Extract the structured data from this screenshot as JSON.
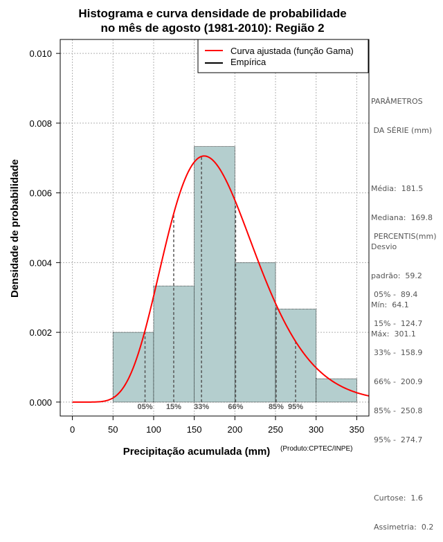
{
  "chart_data": {
    "type": "bar",
    "title_line1": "Histograma e curva densidade de probabilidade",
    "title_line2": "no mês de agosto (1981-2010): Região 2",
    "xlabel": "Precipitação acumulada (mm)",
    "ylabel": "Densidade de probabilidade",
    "credit": "(Produto:CPTEC/INPE)",
    "xlim": [
      -15,
      365
    ],
    "ylim": [
      -0.0004,
      0.0104
    ],
    "x_ticks": [
      0,
      50,
      100,
      150,
      200,
      250,
      300,
      350
    ],
    "y_ticks": [
      0.0,
      0.002,
      0.004,
      0.006,
      0.008,
      0.01
    ],
    "y_tick_labels": [
      "0.000",
      "0.002",
      "0.004",
      "0.006",
      "0.008",
      "0.010"
    ],
    "grid": true,
    "bins": [
      {
        "from": 50,
        "to": 100,
        "density": 0.002
      },
      {
        "from": 100,
        "to": 150,
        "density": 0.00333
      },
      {
        "from": 150,
        "to": 200,
        "density": 0.00733
      },
      {
        "from": 200,
        "to": 250,
        "density": 0.004
      },
      {
        "from": 250,
        "to": 300,
        "density": 0.00267
      },
      {
        "from": 300,
        "to": 350,
        "density": 0.00067
      }
    ],
    "gamma_fit": {
      "shape": 9.4,
      "scale": 19.31
    },
    "percentile_markers": [
      {
        "label": "05%",
        "value": 89.4
      },
      {
        "label": "15%",
        "value": 124.7
      },
      {
        "label": "33%",
        "value": 158.9
      },
      {
        "label": "66%",
        "value": 200.9
      },
      {
        "label": "85%",
        "value": 250.8
      },
      {
        "label": "95%",
        "value": 274.7
      }
    ],
    "legend": [
      {
        "label": "Curva ajustada (função Gama)",
        "color": "#ff0000"
      },
      {
        "label": "Empírica",
        "color": "#000000"
      }
    ],
    "legend_position": "top-right"
  },
  "colors": {
    "bar_fill": "#b4cece",
    "curve": "#ff0000",
    "grid": "#b0b0b0",
    "side_text": "#555555"
  },
  "side_panel": {
    "params_title_1": "PARÂMETROS",
    "params_title_2": " DA SÉRIE (mm)",
    "stats": [
      "Média:  181.5",
      "Mediana:  169.8",
      "Desvio",
      "padrão:  59.2",
      "Mín:  64.1",
      "Máx:  301.1"
    ],
    "percentis_title": "PERCENTIS(mm)",
    "percentis": [
      "05% -  89.4",
      "15% -  124.7",
      "33% -  158.9",
      "66% -  200.9",
      "85% -  250.8",
      "95% -  274.7"
    ],
    "curtose": "Curtose:  1.6",
    "assimetria": "Assimetria:  0.2"
  }
}
